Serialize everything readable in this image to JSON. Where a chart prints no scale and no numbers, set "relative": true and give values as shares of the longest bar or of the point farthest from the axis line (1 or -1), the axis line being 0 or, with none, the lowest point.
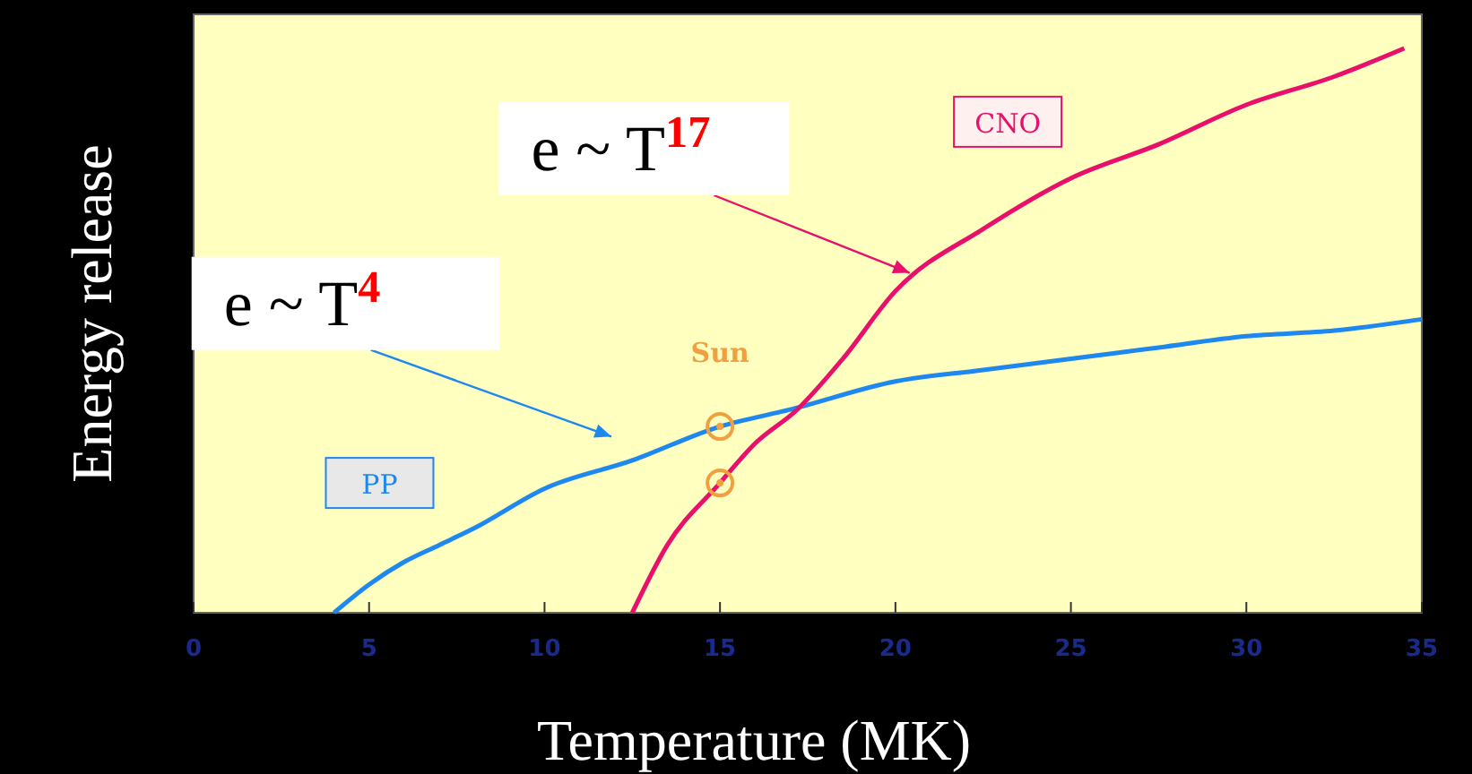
{
  "chart_data": {
    "type": "line",
    "xlabel": "Temperature (MK)",
    "ylabel": "Energy release",
    "relative": true,
    "xlim": [
      0,
      35
    ],
    "xticks": [
      0,
      5,
      10,
      15,
      20,
      25,
      30,
      35
    ],
    "grid": false,
    "marker": "none",
    "series": [
      {
        "name": "PP",
        "color": "#1e88f0",
        "x": [
          4,
          5,
          6,
          7,
          8,
          10,
          12.5,
          15,
          17,
          20,
          22.5,
          25,
          27.5,
          30,
          32.5,
          35
        ],
        "values": [
          0,
          0.05,
          0.09,
          0.12,
          0.15,
          0.22,
          0.27,
          0.33,
          0.36,
          0.41,
          0.43,
          0.45,
          0.47,
          0.49,
          0.5,
          0.52
        ]
      },
      {
        "name": "CNO",
        "color": "#e8106a",
        "x": [
          12.5,
          13.5,
          15,
          16,
          17.2,
          18.5,
          20,
          22.5,
          25,
          27.5,
          30,
          32.5,
          34.5
        ],
        "values": [
          0,
          0.12,
          0.23,
          0.3,
          0.36,
          0.45,
          0.57,
          0.68,
          0.77,
          0.83,
          0.9,
          0.95,
          1
        ]
      },
      {
        "type": "scatter",
        "marker": "circle",
        "color": "#f0a040",
        "x": [
          15,
          15
        ],
        "values": [
          0.33,
          0.23
        ]
      }
    ],
    "annotations": [
      "e ~ T$^{4}$",
      "e ~ T$^{17}$",
      {
        "text": "Sun",
        "x": 15,
        "y": 0.33
      }
    ]
  }
}
